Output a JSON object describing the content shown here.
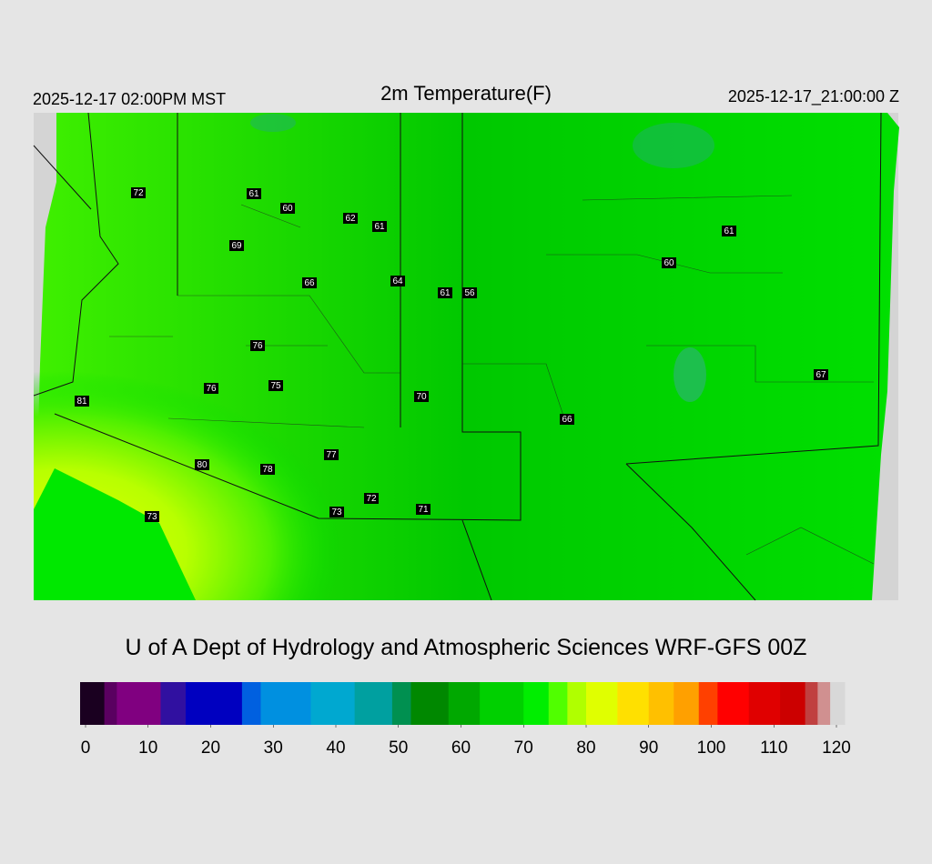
{
  "header": {
    "left": "2025-12-17 02:00PM MST",
    "title": "2m Temperature(F)",
    "right": "2025-12-17_21:00:00 Z"
  },
  "stations": [
    72,
    61,
    60,
    62,
    61,
    69,
    66,
    64,
    61,
    56,
    61,
    60,
    76,
    76,
    75,
    70,
    81,
    67,
    66,
    80,
    78,
    77,
    72,
    73,
    71,
    73
  ],
  "credit": "U of A Dept of Hydrology and Atmospheric Sciences WRF-GFS 00Z",
  "colorbar": {
    "range": [
      0,
      120
    ],
    "ticks": [
      0,
      10,
      20,
      30,
      40,
      50,
      60,
      70,
      80,
      90,
      100,
      110,
      120
    ],
    "colors": [
      {
        "value": 0,
        "color": "#1a0020"
      },
      {
        "value": 3,
        "color": "#5a0060"
      },
      {
        "value": 5,
        "color": "#800080"
      },
      {
        "value": 12,
        "color": "#3010a0"
      },
      {
        "value": 16,
        "color": "#0000c0"
      },
      {
        "value": 25,
        "color": "#0060e0"
      },
      {
        "value": 28,
        "color": "#0090e0"
      },
      {
        "value": 36,
        "color": "#00a8d0"
      },
      {
        "value": 43,
        "color": "#00a0a0"
      },
      {
        "value": 49,
        "color": "#009050"
      },
      {
        "value": 52,
        "color": "#008800"
      },
      {
        "value": 58,
        "color": "#00a800"
      },
      {
        "value": 63,
        "color": "#00d000"
      },
      {
        "value": 70,
        "color": "#00ee00"
      },
      {
        "value": 74,
        "color": "#50ff00"
      },
      {
        "value": 77,
        "color": "#b0ff00"
      },
      {
        "value": 80,
        "color": "#e0ff00"
      },
      {
        "value": 85,
        "color": "#ffe000"
      },
      {
        "value": 90,
        "color": "#ffc000"
      },
      {
        "value": 94,
        "color": "#ffa000"
      },
      {
        "value": 98,
        "color": "#ff4000"
      },
      {
        "value": 101,
        "color": "#ff0000"
      },
      {
        "value": 106,
        "color": "#e00000"
      },
      {
        "value": 111,
        "color": "#cc0000"
      },
      {
        "value": 115,
        "color": "#c04040"
      },
      {
        "value": 117,
        "color": "#d09090"
      },
      {
        "value": 119,
        "color": "#d8d8d8"
      }
    ]
  }
}
